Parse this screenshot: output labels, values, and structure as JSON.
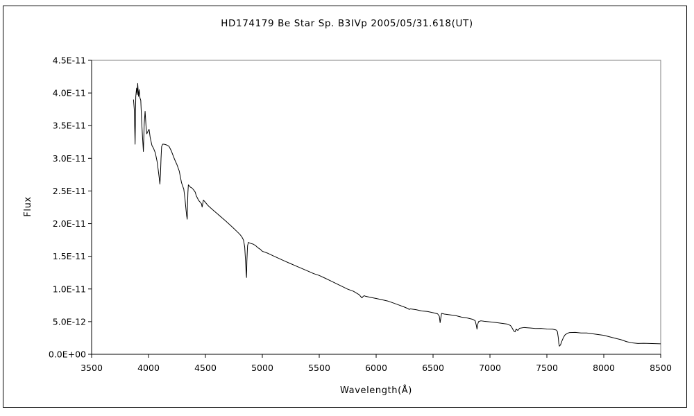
{
  "chart_data": {
    "type": "line",
    "title": "HD174179    Be Star    Sp. B3IVp    2005/05/31.618(UT)",
    "xlabel": "Wavelength(Å)",
    "ylabel": "Flux",
    "xlim": [
      3500,
      8500
    ],
    "ylim": [
      0,
      4.5e-11
    ],
    "xticks": [
      3500,
      4000,
      4500,
      5000,
      5500,
      6000,
      6500,
      7000,
      7500,
      8000,
      8500
    ],
    "xtick_labels": [
      "3500",
      "4000",
      "4500",
      "5000",
      "5500",
      "6000",
      "6500",
      "7000",
      "7500",
      "8000",
      "8500"
    ],
    "yticks": [
      0,
      5e-12,
      1e-11,
      1.5e-11,
      2e-11,
      2.5e-11,
      3e-11,
      3.5e-11,
      4e-11,
      4.5e-11
    ],
    "ytick_labels": [
      "0.0E+00",
      "5.0E-12",
      "1.0E-11",
      "1.5E-11",
      "2.0E-11",
      "2.5E-11",
      "3.0E-11",
      "3.5E-11",
      "4.0E-11",
      "4.5E-11"
    ],
    "grid": false,
    "line_color": "#000000",
    "series": [
      {
        "x": [
          3868,
          3875,
          3882,
          3888,
          3895,
          3900,
          3905,
          3912,
          3918,
          3925,
          3932,
          3940,
          3948,
          3955,
          3962,
          3970,
          3978,
          3985,
          3995,
          4005,
          4015,
          4030,
          4045,
          4060,
          4075,
          4085,
          4095,
          4100,
          4105,
          4110,
          4115,
          4125,
          4140,
          4160,
          4180,
          4200,
          4215,
          4230,
          4250,
          4270,
          4290,
          4310,
          4320,
          4330,
          4335,
          4340,
          4343,
          4346,
          4350,
          4360,
          4370,
          4380,
          4395,
          4410,
          4420,
          4440,
          4455,
          4465,
          4471,
          4476,
          4482,
          4490,
          4500,
          4525,
          4550,
          4575,
          4600,
          4625,
          4650,
          4675,
          4700,
          4725,
          4750,
          4775,
          4800,
          4820,
          4835,
          4845,
          4852,
          4858,
          4861,
          4864,
          4870,
          4878,
          4885,
          4900,
          4920,
          4940,
          4960,
          4980,
          5000,
          5050,
          5100,
          5150,
          5200,
          5250,
          5300,
          5350,
          5400,
          5450,
          5500,
          5550,
          5600,
          5650,
          5700,
          5750,
          5800,
          5850,
          5875,
          5885,
          5895,
          5905,
          5950,
          6000,
          6050,
          6100,
          6150,
          6200,
          6250,
          6280,
          6290,
          6300,
          6350,
          6400,
          6450,
          6500,
          6540,
          6555,
          6562,
          6568,
          6575,
          6600,
          6650,
          6700,
          6750,
          6800,
          6850,
          6870,
          6880,
          6886,
          6892,
          6900,
          6920,
          6950,
          7000,
          7050,
          7100,
          7150,
          7180,
          7190,
          7200,
          7210,
          7220,
          7230,
          7245,
          7260,
          7300,
          7350,
          7400,
          7450,
          7500,
          7550,
          7580,
          7592,
          7600,
          7605,
          7610,
          7620,
          7630,
          7645,
          7660,
          7680,
          7700,
          7750,
          7800,
          7850,
          7900,
          7950,
          8000,
          8050,
          8100,
          8150,
          8200,
          8250,
          8300,
          8350,
          8400,
          8450,
          8500
        ],
        "y": [
          3.9e-11,
          3.75e-11,
          3.22e-11,
          3.95e-11,
          4.08e-11,
          3.98e-11,
          4.15e-11,
          3.95e-11,
          4.05e-11,
          3.92e-11,
          3.88e-11,
          3.55e-11,
          3.3e-11,
          3.1e-11,
          3.52e-11,
          3.72e-11,
          3.5e-11,
          3.38e-11,
          3.42e-11,
          3.45e-11,
          3.32e-11,
          3.2e-11,
          3.15e-11,
          3.08e-11,
          2.95e-11,
          2.82e-11,
          2.68e-11,
          2.6e-11,
          2.75e-11,
          3e-11,
          3.18e-11,
          3.22e-11,
          3.22e-11,
          3.21e-11,
          3.19e-11,
          3.12e-11,
          3.05e-11,
          2.98e-11,
          2.9e-11,
          2.8e-11,
          2.62e-11,
          2.52e-11,
          2.38e-11,
          2.2e-11,
          2.12e-11,
          2.07e-11,
          2.3e-11,
          2.48e-11,
          2.6e-11,
          2.58e-11,
          2.56e-11,
          2.55e-11,
          2.52e-11,
          2.48e-11,
          2.42e-11,
          2.35e-11,
          2.32e-11,
          2.3e-11,
          2.25e-11,
          2.3e-11,
          2.36e-11,
          2.35e-11,
          2.33e-11,
          2.28e-11,
          2.24e-11,
          2.2e-11,
          2.16e-11,
          2.12e-11,
          2.08e-11,
          2.04e-11,
          2e-11,
          1.96e-11,
          1.92e-11,
          1.88e-11,
          1.84e-11,
          1.8e-11,
          1.75e-11,
          1.65e-11,
          1.45e-11,
          1.25e-11,
          1.18e-11,
          1.42e-11,
          1.66e-11,
          1.71e-11,
          1.7e-11,
          1.69e-11,
          1.68e-11,
          1.66e-11,
          1.63e-11,
          1.61e-11,
          1.58e-11,
          1.55e-11,
          1.51e-11,
          1.47e-11,
          1.43e-11,
          1.39e-11,
          1.35e-11,
          1.31e-11,
          1.27e-11,
          1.23e-11,
          1.2e-11,
          1.16e-11,
          1.12e-11,
          1.08e-11,
          1.04e-11,
          1e-11,
          9.7e-12,
          9.2e-12,
          8.7e-12,
          8.9e-12,
          9e-12,
          8.9e-12,
          8.7e-12,
          8.5e-12,
          8.3e-12,
          8.1e-12,
          7.8e-12,
          7.5e-12,
          7.2e-12,
          7e-12,
          6.9e-12,
          7e-12,
          6.9e-12,
          6.7e-12,
          6.6e-12,
          6.4e-12,
          6.2e-12,
          5.8e-12,
          4.8e-12,
          5.5e-12,
          6.2e-12,
          6.1e-12,
          6e-12,
          5.9e-12,
          5.7e-12,
          5.6e-12,
          5.4e-12,
          5.2e-12,
          4.5e-12,
          3.9e-12,
          4.6e-12,
          5e-12,
          5.1e-12,
          5e-12,
          4.9e-12,
          4.8e-12,
          4.7e-12,
          4.6e-12,
          4.4e-12,
          4.2e-12,
          3.9e-12,
          3.6e-12,
          3.5e-12,
          3.9e-12,
          3.7e-12,
          4e-12,
          4.1e-12,
          4e-12,
          3.9e-12,
          3.9e-12,
          3.8e-12,
          3.8e-12,
          3.7e-12,
          3.5e-12,
          2.6e-12,
          1.7e-12,
          1.3e-12,
          1.5e-12,
          2e-12,
          2.6e-12,
          3e-12,
          3.2e-12,
          3.3e-12,
          3.3e-12,
          3.2e-12,
          3.2e-12,
          3.1e-12,
          3e-12,
          2.9e-12,
          2.7e-12,
          2.5e-12,
          2.3e-12,
          2e-12,
          1.8e-12,
          1.7e-12,
          1.7e-12,
          1.65e-12,
          1.6e-12,
          1.55e-12
        ]
      }
    ]
  }
}
